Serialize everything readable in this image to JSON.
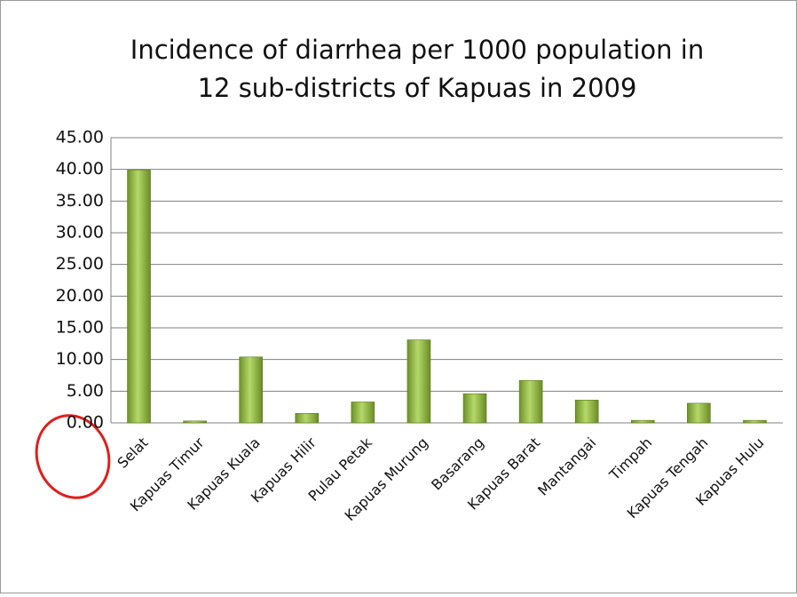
{
  "chart_data": {
    "type": "bar",
    "title": [
      "Incidence of diarrhea per 1000 population in",
      "12 sub-districts of Kapuas in 2009"
    ],
    "categories": [
      "Selat",
      "Kapuas Timur",
      "Kapuas Kuala",
      "Kapuas Hilir",
      "Pulau Petak",
      "Kapuas Murung",
      "Basarang",
      "Kapuas Barat",
      "Mantangai",
      "Timpah",
      "Kapuas Tengah",
      "Kapuas Hulu"
    ],
    "values": [
      39.9,
      0.3,
      10.4,
      1.5,
      3.3,
      13.1,
      4.6,
      6.7,
      3.6,
      0.4,
      3.1,
      0.4
    ],
    "color": "#8db33a",
    "ylim": [
      0,
      45
    ],
    "yticks": [
      {
        "value": 0,
        "label": "0.00"
      },
      {
        "value": 5,
        "label": "5.00"
      },
      {
        "value": 10,
        "label": "10.00"
      },
      {
        "value": 15,
        "label": "15.00"
      },
      {
        "value": 20,
        "label": "20.00"
      },
      {
        "value": 25,
        "label": "25.00"
      },
      {
        "value": 30,
        "label": "30.00"
      },
      {
        "value": 35,
        "label": "35.00"
      },
      {
        "value": 40,
        "label": "40.00"
      },
      {
        "value": 45,
        "label": "45.00"
      }
    ],
    "grid": true
  }
}
